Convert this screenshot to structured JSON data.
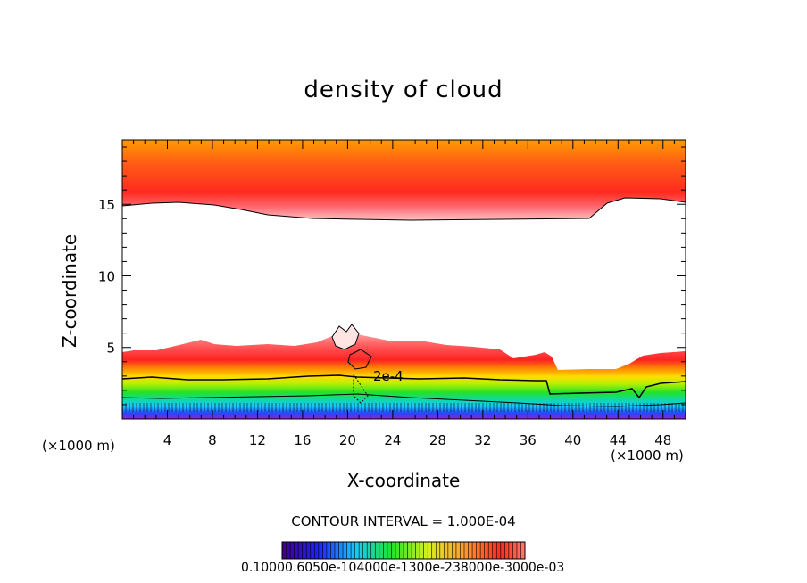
{
  "chart_data": {
    "type": "heatmap",
    "title": "density of cloud",
    "xlabel": "X-coordinate",
    "ylabel": "Z-coordinate",
    "x_unit": "(×1000 m)",
    "y_unit": "(×1000 m)",
    "xlim": [
      0,
      50
    ],
    "ylim": [
      0,
      19.5
    ],
    "x_ticks": [
      4,
      8,
      12,
      16,
      20,
      24,
      28,
      32,
      36,
      40,
      44,
      48
    ],
    "y_ticks": [
      5,
      10,
      15
    ],
    "contour_interval_text": "CONTOUR INTERVAL = 1.000E-04",
    "contour_label": "2e-4",
    "colorbar_labels": [
      "0.1000e-6",
      "0.5000e-4",
      "0.1000e-3",
      "0.1500e-3",
      "0.2000e-3",
      "0.2500e-3",
      "0.3000e-3"
    ],
    "colorbar_text": "0.10000.6050e-104000e-1300e-238000e-3000e-03",
    "colors": {
      "high": "#ff8a00",
      "upper": "#ff2a1e",
      "mid": "#ff6a70",
      "light": "#ffb7b7",
      "green": "#22e22a",
      "yellow_green": "#a0f000",
      "cyan": "#19c8ff",
      "blue": "#2448ff",
      "violet": "#8e22d4",
      "contour": "#000000"
    }
  }
}
